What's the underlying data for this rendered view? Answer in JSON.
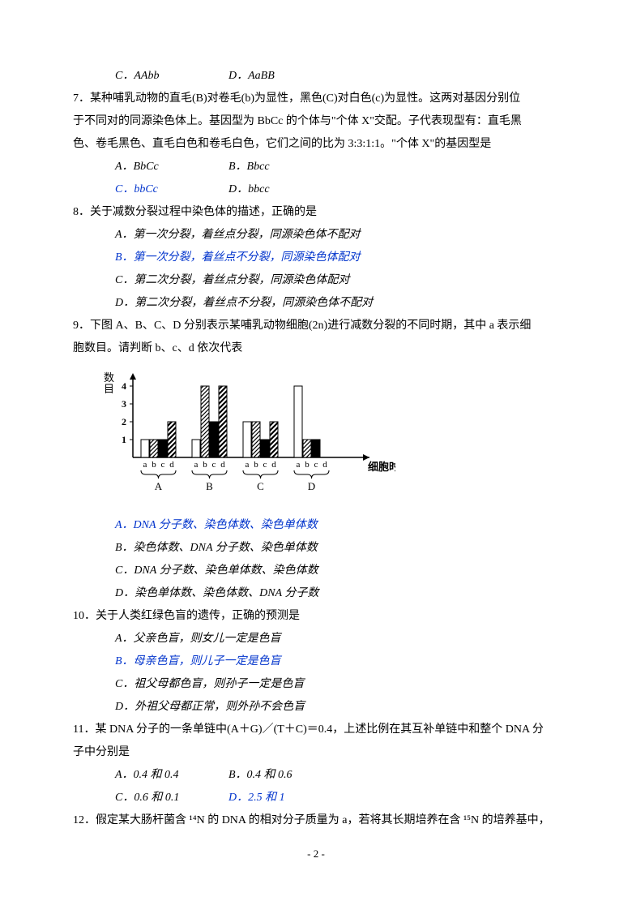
{
  "q6": {
    "optC": "C．AAbb",
    "optD": "D．AaBB"
  },
  "q7": {
    "stem1": "7．某种哺乳动物的直毛(B)对卷毛(b)为显性，黑色(C)对白色(c)为显性。这两对基因分别位",
    "stem2": "于不同对的同源染色体上。基因型为 BbCc 的个体与\"个体 X\"交配。子代表现型有：直毛黑",
    "stem3": "色、卷毛黑色、直毛白色和卷毛白色，它们之间的比为 3:3:1:1。\"个体 X\"的基因型是",
    "optA": "A．BbCc",
    "optB": "B．Bbcc",
    "optC": "C．bbCc",
    "optD": "D．bbcc"
  },
  "q8": {
    "stem": "8．关于减数分裂过程中染色体的描述，正确的是",
    "optA": "A．第一次分裂，着丝点分裂，同源染色体不配对",
    "optB": "B．第一次分裂，着丝点不分裂，同源染色体配对",
    "optC": "C．第二次分裂，着丝点分裂，同源染色体配对",
    "optD": "D．第二次分裂，着丝点不分裂，同源染色体不配对"
  },
  "q9": {
    "stem1": "9．下图 A、B、C、D 分别表示某哺乳动物细胞(2n)进行减数分裂的不同时期，其中 a 表示细",
    "stem2": "胞数目。请判断 b、c、d 依次代表",
    "optA": "A．DNA 分子数、染色体数、染色单体数",
    "optB": "B．染色体数、DNA 分子数、染色单体数",
    "optC": "C．DNA 分子数、染色单体数、染色体数",
    "optD": "D．染色单体数、染色体数、DNA 分子数"
  },
  "chart": {
    "yLabel": "数\n目",
    "yTicks": [
      1,
      2,
      3,
      4
    ],
    "xLabel": "细胞时期",
    "groups": [
      "A",
      "B",
      "C",
      "D"
    ],
    "subLabels": [
      "a",
      "b",
      "c",
      "d"
    ],
    "type": "grouped-bar",
    "barFills": {
      "a": {
        "fill": "#ffffff",
        "pattern": "none"
      },
      "b": {
        "fill": "#000000",
        "pattern": "hatch"
      },
      "c": {
        "fill": "#000000",
        "pattern": "solid"
      },
      "d": {
        "fill": "#000000",
        "pattern": "thickstripe"
      }
    },
    "data": {
      "A": {
        "a": 1,
        "b": 1,
        "c": 1,
        "d": 2
      },
      "B": {
        "a": 1,
        "b": 4,
        "c": 2,
        "d": 4
      },
      "C": {
        "a": 2,
        "b": 2,
        "c": 1,
        "d": 2
      },
      "D": {
        "a": 4,
        "b": 1,
        "c": 1,
        "d": 0
      }
    },
    "colors": {
      "axis": "#000000",
      "bg": "#ffffff",
      "barStroke": "#000000"
    },
    "barWidth": 10,
    "barGap": 1,
    "groupGap": 20,
    "chartWidth": 340,
    "chartHeight": 140,
    "plotLeft": 36,
    "plotBottom": 110,
    "unitHeight": 22
  },
  "q10": {
    "stem": "10．关于人类红绿色盲的遗传，正确的预测是",
    "optA": "A．父亲色盲，则女儿一定是色盲",
    "optB": "B．母亲色盲，则儿子一定是色盲",
    "optC": "C．祖父母都色盲，则孙子一定是色盲",
    "optD": "D．外祖父母都正常，则外孙不会色盲"
  },
  "q11": {
    "stem1": "11．某 DNA 分子的一条单链中(A＋G)／(T＋C)＝0.4，上述比例在其互补单链中和整个 DNA 分",
    "stem2": "子中分别是",
    "optA": "A．0.4 和 0.4",
    "optB": "B．0.4 和 0.6",
    "optC": "C．0.6 和 0.1",
    "optD": "D．2.5 和 1"
  },
  "q12": {
    "stem": "12．假定某大肠杆菌含 ¹⁴N 的 DNA 的相对分子质量为 a，若将其长期培养在含 ¹⁵N 的培养基中，"
  },
  "pageNum": "- 2 -"
}
